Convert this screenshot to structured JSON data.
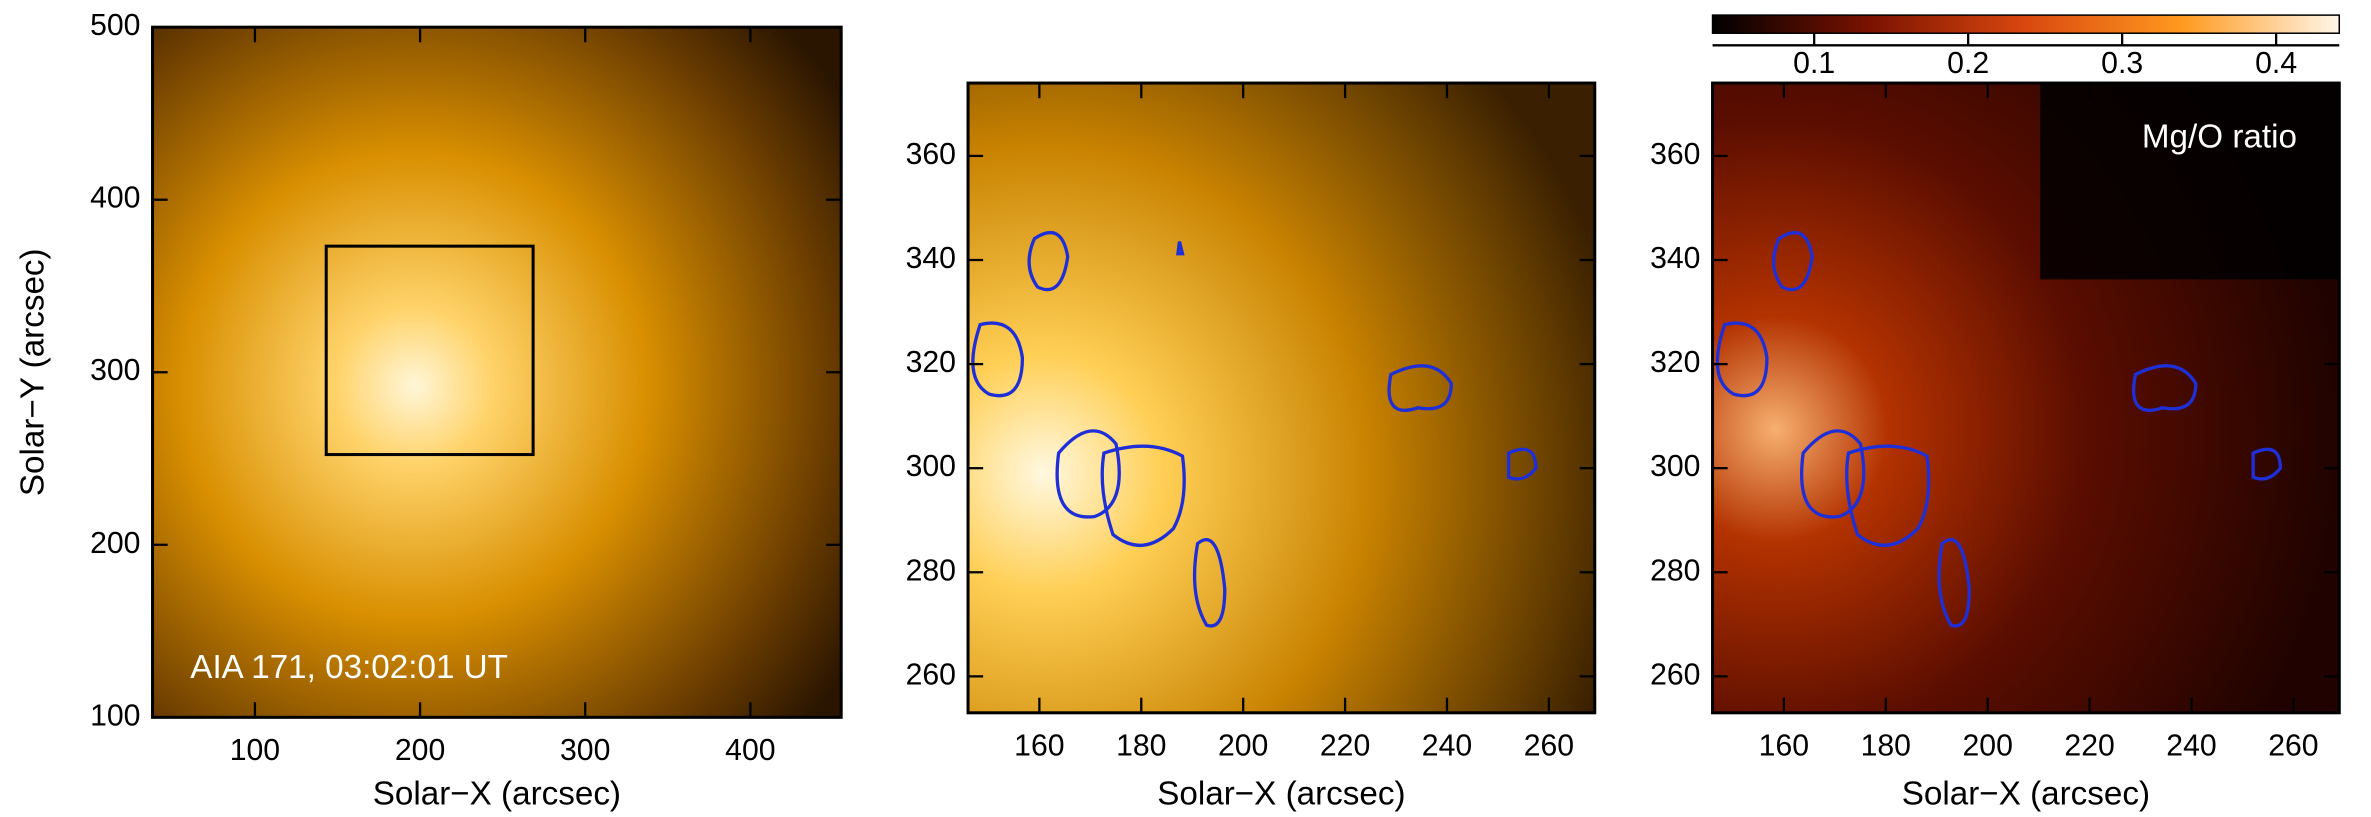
{
  "chart_data": [
    {
      "type": "image",
      "xlabel": "Solar−X (arcsec)",
      "ylabel": "Solar−Y (arcsec)",
      "xlim": [
        38,
        455
      ],
      "ylim": [
        100,
        500
      ],
      "xticks": [
        100,
        200,
        300,
        400
      ],
      "yticks": [
        100,
        200,
        300,
        400,
        500
      ],
      "annotation": "AIA 171, 03:02:01 UT"
    },
    {
      "type": "image",
      "xlabel": "Solar−X (arcsec)",
      "xlim": [
        146,
        269
      ],
      "ylim": [
        253,
        374
      ],
      "xticks": [
        160,
        180,
        200,
        220,
        240,
        260
      ],
      "yticks": [
        260,
        280,
        300,
        320,
        340,
        360
      ]
    },
    {
      "type": "image",
      "xlabel": "Solar−X (arcsec)",
      "xlim": [
        146,
        269
      ],
      "ylim": [
        253,
        374
      ],
      "xticks": [
        160,
        180,
        200,
        220,
        240,
        260
      ],
      "yticks": [
        260,
        280,
        300,
        320,
        340,
        360
      ],
      "annotation": "Mg/O ratio",
      "colorbar": {
        "lim": [
          0.034,
          0.441
        ],
        "ticks": [
          0.1,
          0.2,
          0.3,
          0.4
        ],
        "colors": [
          "#000000",
          "#7a1200",
          "#d9480f",
          "#ff9a1f",
          "#fff6ea"
        ]
      }
    }
  ]
}
